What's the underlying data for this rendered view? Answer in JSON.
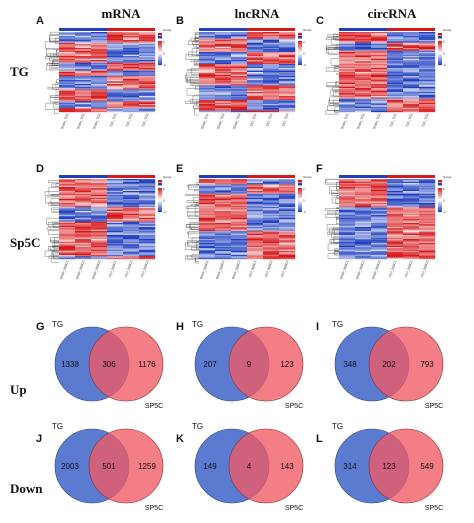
{
  "columns": [
    "mRNA",
    "lncRNA",
    "circRNA"
  ],
  "rows": [
    "TG",
    "Sp5C",
    "Up",
    "Down"
  ],
  "panel_letters": [
    "A",
    "B",
    "C",
    "D",
    "E",
    "F",
    "G",
    "H",
    "I",
    "J",
    "K",
    "L"
  ],
  "colors": {
    "hm_high": "#d7191c",
    "hm_mid": "#ffffff",
    "hm_low": "#1f3fbf",
    "venn_tg": "#5b7bd0",
    "venn_sp5c": "#f05a64",
    "venn_overlap": "#a8546c"
  },
  "heatmap_sample_labels": {
    "TG": [
      "Sham_TG1",
      "Sham_TG2",
      "Sham_TG3",
      "CCI_TG1",
      "CCI_TG2",
      "CCI_TG3"
    ],
    "Sp5C": [
      "Sham_Sp5C1",
      "Sham_Sp5C2",
      "Sham_Sp5C3",
      "CCI_Sp5C1",
      "CCI_Sp5C2",
      "CCI_Sp5C3"
    ]
  },
  "heatmap_legend": {
    "group_label": "Group",
    "scale_ticks": [
      "2",
      "0",
      "-2"
    ]
  },
  "venn_labels": {
    "left": "TG",
    "right": "SP5C"
  },
  "chart_data": [
    {
      "panel": "A",
      "type": "heatmap",
      "title": "mRNA",
      "row_label": "TG"
    },
    {
      "panel": "B",
      "type": "heatmap",
      "title": "lncRNA",
      "row_label": "TG"
    },
    {
      "panel": "C",
      "type": "heatmap",
      "title": "circRNA",
      "row_label": "TG"
    },
    {
      "panel": "D",
      "type": "heatmap",
      "title": "mRNA",
      "row_label": "Sp5C"
    },
    {
      "panel": "E",
      "type": "heatmap",
      "title": "lncRNA",
      "row_label": "Sp5C"
    },
    {
      "panel": "F",
      "type": "heatmap",
      "title": "circRNA",
      "row_label": "Sp5C"
    },
    {
      "panel": "G",
      "type": "venn",
      "row_label": "Up",
      "sets": [
        "TG",
        "SP5C"
      ],
      "left_only": 1338,
      "overlap": 306,
      "right_only": 1176
    },
    {
      "panel": "H",
      "type": "venn",
      "row_label": "Up",
      "sets": [
        "TG",
        "SP5C"
      ],
      "left_only": 207,
      "overlap": 9,
      "right_only": 123
    },
    {
      "panel": "I",
      "type": "venn",
      "row_label": "Up",
      "sets": [
        "TG",
        "SP5C"
      ],
      "left_only": 348,
      "overlap": 202,
      "right_only": 793
    },
    {
      "panel": "J",
      "type": "venn",
      "row_label": "Down",
      "sets": [
        "TG",
        "SP5C"
      ],
      "left_only": 2003,
      "overlap": 501,
      "right_only": 1259
    },
    {
      "panel": "K",
      "type": "venn",
      "row_label": "Down",
      "sets": [
        "TG",
        "SP5C"
      ],
      "left_only": 149,
      "overlap": 4,
      "right_only": 143
    },
    {
      "panel": "L",
      "type": "venn",
      "row_label": "Down",
      "sets": [
        "TG",
        "SP5C"
      ],
      "left_only": 314,
      "overlap": 123,
      "right_only": 549
    }
  ]
}
